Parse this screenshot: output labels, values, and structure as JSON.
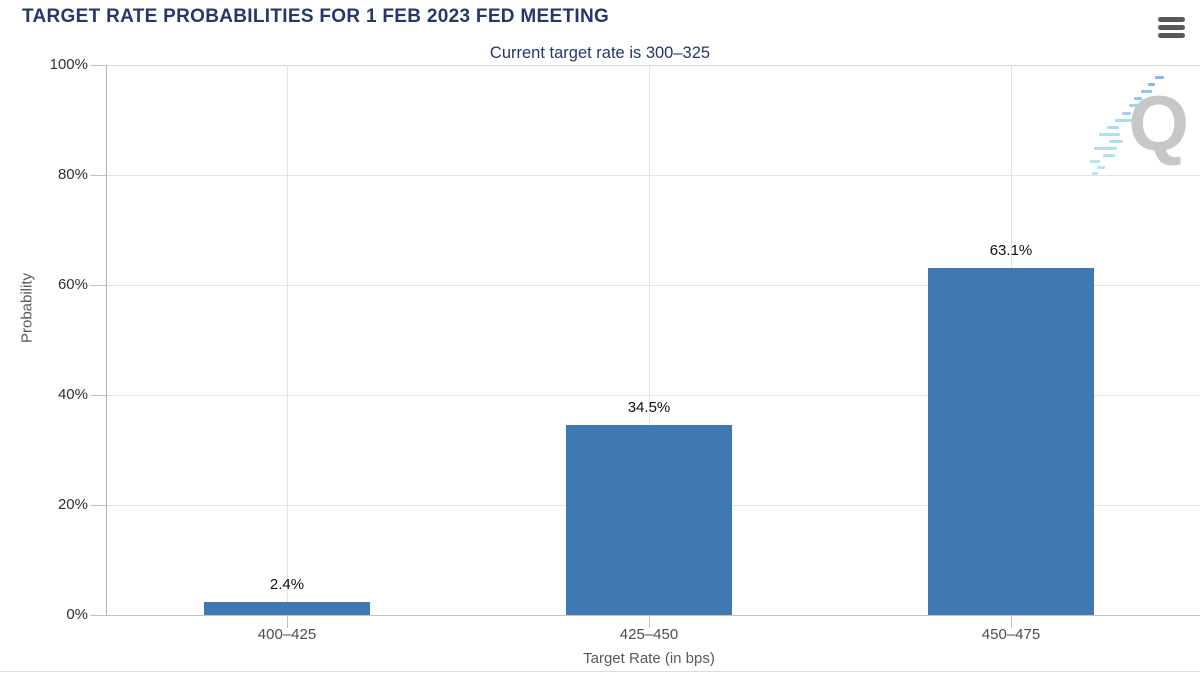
{
  "header": {
    "menu_icon": "hamburger-menu-icon"
  },
  "watermark": {
    "letter": "Q"
  },
  "chart_data": {
    "type": "bar",
    "title": "TARGET RATE PROBABILITIES FOR 1 FEB 2023 FED MEETING",
    "subtitle": "Current target rate is 300–325",
    "categories": [
      "400–425",
      "425–450",
      "450–475"
    ],
    "values": [
      2.4,
      34.5,
      63.1
    ],
    "value_labels": [
      "2.4%",
      "34.5%",
      "63.1%"
    ],
    "xlabel": "Target Rate (in bps)",
    "ylabel": "Probability",
    "ylim": [
      0,
      100
    ],
    "yticks": [
      0,
      20,
      40,
      60,
      80,
      100
    ],
    "ytick_labels": [
      "0%",
      "20%",
      "40%",
      "60%",
      "80%",
      "100%"
    ],
    "grid": true,
    "legend_position": "none",
    "bar_color": "#3e79b4",
    "title_color": "#25376b",
    "axis_text_color": "#58595b"
  }
}
